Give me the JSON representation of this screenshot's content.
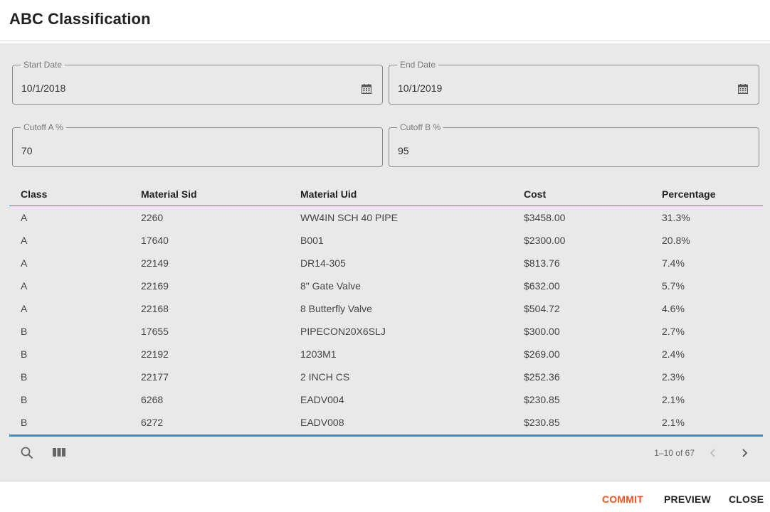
{
  "dialog": {
    "title": "ABC Classification"
  },
  "filters": {
    "start_date": {
      "label": "Start Date",
      "value": "10/1/2018",
      "icon": "calendar-icon"
    },
    "end_date": {
      "label": "End Date",
      "value": "10/1/2019",
      "icon": "calendar-icon"
    },
    "cutoff_a": {
      "label": "Cutoff A %",
      "value": "70"
    },
    "cutoff_b": {
      "label": "Cutoff B %",
      "value": "95"
    }
  },
  "table": {
    "columns": [
      "Class",
      "Material Sid",
      "Material Uid",
      "Cost",
      "Percentage"
    ],
    "rows": [
      [
        "A",
        "2260",
        "WW4IN SCH 40 PIPE",
        "$3458.00",
        "31.3%"
      ],
      [
        "A",
        "17640",
        "B001",
        "$2300.00",
        "20.8%"
      ],
      [
        "A",
        "22149",
        "DR14-305",
        "$813.76",
        "7.4%"
      ],
      [
        "A",
        "22169",
        "8\" Gate Valve",
        "$632.00",
        "5.7%"
      ],
      [
        "A",
        "22168",
        "8 Butterfly Valve",
        "$504.72",
        "4.6%"
      ],
      [
        "B",
        "17655",
        "PIPECON20X6SLJ",
        "$300.00",
        "2.7%"
      ],
      [
        "B",
        "22192",
        "1203M1",
        "$269.00",
        "2.4%"
      ],
      [
        "B",
        "22177",
        "2 INCH CS",
        "$252.36",
        "2.3%"
      ],
      [
        "B",
        "6268",
        "EADV004",
        "$230.85",
        "2.1%"
      ],
      [
        "B",
        "6272",
        "EADV008",
        "$230.85",
        "2.1%"
      ]
    ]
  },
  "toolbar": {
    "search_icon": "search-icon",
    "columns_icon": "view-columns-icon",
    "pagination": "1–10 of 67",
    "prev_icon": "chevron-left-icon",
    "next_icon": "chevron-right-icon"
  },
  "actions": {
    "commit": "COMMIT",
    "preview": "PREVIEW",
    "close": "CLOSE"
  },
  "colors": {
    "accent": "#2a93d5",
    "commit": "#f4511e",
    "panel_bg": "#e9e9e9"
  }
}
